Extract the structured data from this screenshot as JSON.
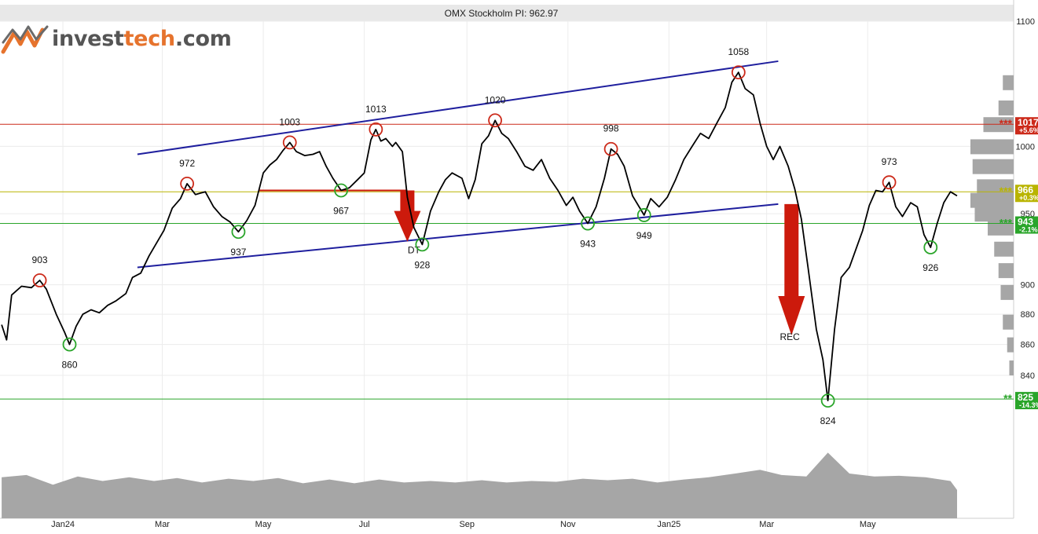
{
  "logo": {
    "part1": "invest",
    "part2": "tech",
    "part3": ".com",
    "icon": "investtech-logo-icon"
  },
  "colors": {
    "price": "#000000",
    "channel": "#1f1f9e",
    "resistance": "#cc2a1a",
    "support": "#2aa52a",
    "current": "#b9b400",
    "arrow": "#cc1a0c",
    "volume": "#a6a6a6",
    "profile": "#a6a6a6",
    "top_marker": "#cc2a1a",
    "bottom_marker": "#2aa52a"
  },
  "chart_data": {
    "type": "line",
    "title": "OMX Stockholm PI: 962.97",
    "ylim": [
      807,
      1100
    ],
    "y_scale": "log",
    "y_ticks": [
      1100,
      1000,
      950,
      900,
      880,
      860,
      840
    ],
    "y_tick_labels": [
      "1100",
      "1000",
      "950",
      "900",
      "880",
      "860",
      "840"
    ],
    "x_range": [
      "2023-11-24",
      "2025-06-24"
    ],
    "x_ticks": [
      {
        "date": "2024-01-01",
        "label": "Jan24"
      },
      {
        "date": "2024-03-01",
        "label": "Mar"
      },
      {
        "date": "2024-05-01",
        "label": "May"
      },
      {
        "date": "2024-07-01",
        "label": "Jul"
      },
      {
        "date": "2024-09-01",
        "label": "Sep"
      },
      {
        "date": "2024-11-01",
        "label": "Nov"
      },
      {
        "date": "2025-01-01",
        "label": "Jan25"
      },
      {
        "date": "2025-03-01",
        "label": "Mar"
      },
      {
        "date": "2025-05-01",
        "label": "May"
      }
    ],
    "series": [
      {
        "values": [
          [
            "2023-11-25",
            873
          ],
          [
            "2023-11-28",
            863
          ],
          [
            "2023-12-01",
            893
          ],
          [
            "2023-12-07",
            899
          ],
          [
            "2023-12-13",
            898
          ],
          [
            "2023-12-18",
            903
          ],
          [
            "2023-12-22",
            897
          ],
          [
            "2023-12-28",
            880
          ],
          [
            "2024-01-02",
            868
          ],
          [
            "2024-01-05",
            860
          ],
          [
            "2024-01-09",
            872
          ],
          [
            "2024-01-13",
            880
          ],
          [
            "2024-01-18",
            883
          ],
          [
            "2024-01-23",
            881
          ],
          [
            "2024-01-28",
            886
          ],
          [
            "2024-02-02",
            889
          ],
          [
            "2024-02-08",
            894
          ],
          [
            "2024-02-12",
            905
          ],
          [
            "2024-02-17",
            908
          ],
          [
            "2024-02-22",
            920
          ],
          [
            "2024-02-27",
            930
          ],
          [
            "2024-03-02",
            938
          ],
          [
            "2024-03-07",
            954
          ],
          [
            "2024-03-12",
            961
          ],
          [
            "2024-03-16",
            972
          ],
          [
            "2024-03-21",
            964
          ],
          [
            "2024-03-27",
            966
          ],
          [
            "2024-04-01",
            955
          ],
          [
            "2024-04-06",
            948
          ],
          [
            "2024-04-11",
            944
          ],
          [
            "2024-04-16",
            937
          ],
          [
            "2024-04-21",
            945
          ],
          [
            "2024-04-26",
            956
          ],
          [
            "2024-05-01",
            980
          ],
          [
            "2024-05-05",
            986
          ],
          [
            "2024-05-09",
            990
          ],
          [
            "2024-05-13",
            997
          ],
          [
            "2024-05-17",
            1003
          ],
          [
            "2024-05-21",
            996
          ],
          [
            "2024-05-26",
            993
          ],
          [
            "2024-05-31",
            994
          ],
          [
            "2024-06-04",
            996
          ],
          [
            "2024-06-08",
            985
          ],
          [
            "2024-06-12",
            976
          ],
          [
            "2024-06-17",
            967
          ],
          [
            "2024-06-22",
            969
          ],
          [
            "2024-06-27",
            975
          ],
          [
            "2024-07-01",
            980
          ],
          [
            "2024-07-05",
            1005
          ],
          [
            "2024-07-08",
            1013
          ],
          [
            "2024-07-11",
            1004
          ],
          [
            "2024-07-14",
            1006
          ],
          [
            "2024-07-18",
            1000
          ],
          [
            "2024-07-20",
            1003
          ],
          [
            "2024-07-24",
            996
          ],
          [
            "2024-07-27",
            962
          ],
          [
            "2024-07-31",
            940
          ],
          [
            "2024-08-05",
            928
          ],
          [
            "2024-08-10",
            952
          ],
          [
            "2024-08-15",
            966
          ],
          [
            "2024-08-19",
            975
          ],
          [
            "2024-08-23",
            980
          ],
          [
            "2024-08-29",
            976
          ],
          [
            "2024-09-02",
            961
          ],
          [
            "2024-09-06",
            975
          ],
          [
            "2024-09-10",
            1002
          ],
          [
            "2024-09-14",
            1008
          ],
          [
            "2024-09-18",
            1020
          ],
          [
            "2024-09-22",
            1010
          ],
          [
            "2024-09-26",
            1006
          ],
          [
            "2024-10-01",
            996
          ],
          [
            "2024-10-06",
            985
          ],
          [
            "2024-10-11",
            982
          ],
          [
            "2024-10-16",
            990
          ],
          [
            "2024-10-21",
            976
          ],
          [
            "2024-10-26",
            967
          ],
          [
            "2024-10-31",
            956
          ],
          [
            "2024-11-04",
            962
          ],
          [
            "2024-11-08",
            952
          ],
          [
            "2024-11-13",
            943
          ],
          [
            "2024-11-18",
            955
          ],
          [
            "2024-11-23",
            976
          ],
          [
            "2024-11-27",
            998
          ],
          [
            "2024-12-01",
            994
          ],
          [
            "2024-12-05",
            985
          ],
          [
            "2024-12-10",
            963
          ],
          [
            "2024-12-14",
            955
          ],
          [
            "2024-12-17",
            949
          ],
          [
            "2024-12-21",
            961
          ],
          [
            "2024-12-26",
            955
          ],
          [
            "2024-12-31",
            962
          ],
          [
            "2025-01-05",
            975
          ],
          [
            "2025-01-10",
            990
          ],
          [
            "2025-01-15",
            1000
          ],
          [
            "2025-01-20",
            1010
          ],
          [
            "2025-01-25",
            1006
          ],
          [
            "2025-01-30",
            1018
          ],
          [
            "2025-02-04",
            1030
          ],
          [
            "2025-02-08",
            1050
          ],
          [
            "2025-02-12",
            1058
          ],
          [
            "2025-02-16",
            1045
          ],
          [
            "2025-02-21",
            1040
          ],
          [
            "2025-02-25",
            1018
          ],
          [
            "2025-03-01",
            1000
          ],
          [
            "2025-03-05",
            990
          ],
          [
            "2025-03-09",
            1000
          ],
          [
            "2025-03-14",
            985
          ],
          [
            "2025-03-18",
            968
          ],
          [
            "2025-03-22",
            946
          ],
          [
            "2025-03-26",
            912
          ],
          [
            "2025-03-31",
            870
          ],
          [
            "2025-04-04",
            850
          ],
          [
            "2025-04-07",
            824
          ],
          [
            "2025-04-11",
            870
          ],
          [
            "2025-04-15",
            905
          ],
          [
            "2025-04-20",
            912
          ],
          [
            "2025-04-24",
            925
          ],
          [
            "2025-04-28",
            938
          ],
          [
            "2025-05-02",
            956
          ],
          [
            "2025-05-06",
            967
          ],
          [
            "2025-05-10",
            966
          ],
          [
            "2025-05-14",
            973
          ],
          [
            "2025-05-18",
            955
          ],
          [
            "2025-05-22",
            948
          ],
          [
            "2025-05-27",
            958
          ],
          [
            "2025-05-31",
            955
          ],
          [
            "2025-06-04",
            935
          ],
          [
            "2025-06-08",
            926
          ],
          [
            "2025-06-12",
            943
          ],
          [
            "2025-06-16",
            958
          ],
          [
            "2025-06-20",
            966
          ],
          [
            "2025-06-24",
            963
          ]
        ]
      }
    ],
    "channel_lines": [
      {
        "from": [
          "2024-02-15",
          994
        ],
        "to": [
          "2025-03-08",
          1067
        ]
      },
      {
        "from": [
          "2024-02-15",
          912
        ],
        "to": [
          "2025-03-08",
          957
        ]
      }
    ],
    "levels": [
      {
        "value": 1017,
        "star_label": "***",
        "label": "1017",
        "change": "+5.6%",
        "color": "#cc2a1a"
      },
      {
        "value": 966,
        "star_label": "***",
        "label": "966",
        "change": "+0.3%",
        "color": "#b9b400"
      },
      {
        "value": 943,
        "star_label": "***",
        "label": "943",
        "change": "-2.1%",
        "color": "#2aa52a"
      },
      {
        "value": 825,
        "star_label": "**",
        "label": "825",
        "change": "-14.3%",
        "color": "#2aa52a"
      }
    ],
    "double_top_base": {
      "from": [
        "2024-04-28",
        967
      ],
      "to": [
        "2024-07-27",
        967
      ]
    },
    "arrows": [
      {
        "date": "2024-07-27",
        "from": 967,
        "to": 930
      },
      {
        "date": "2025-03-16",
        "from": 957,
        "to": 866
      }
    ],
    "pattern_labels": [
      {
        "text": "DT",
        "date": "2024-07-31",
        "value": 924
      },
      {
        "text": "REC",
        "date": "2025-03-15",
        "value": 865
      }
    ],
    "tops": [
      {
        "date": "2023-12-18",
        "value": 903,
        "label": "903"
      },
      {
        "date": "2024-03-16",
        "value": 972,
        "label": "972"
      },
      {
        "date": "2024-05-17",
        "value": 1003,
        "label": "1003"
      },
      {
        "date": "2024-07-08",
        "value": 1013,
        "label": "1013"
      },
      {
        "date": "2024-09-18",
        "value": 1020,
        "label": "1020"
      },
      {
        "date": "2024-11-27",
        "value": 998,
        "label": "998"
      },
      {
        "date": "2025-02-12",
        "value": 1058,
        "label": "1058"
      },
      {
        "date": "2025-05-14",
        "value": 973,
        "label": "973"
      }
    ],
    "bottoms": [
      {
        "date": "2024-01-05",
        "value": 860,
        "label": "860"
      },
      {
        "date": "2024-04-16",
        "value": 937,
        "label": "937"
      },
      {
        "date": "2024-06-17",
        "value": 967,
        "label": "967"
      },
      {
        "date": "2024-08-05",
        "value": 928,
        "label": "928"
      },
      {
        "date": "2024-11-13",
        "value": 943,
        "label": "943"
      },
      {
        "date": "2024-12-17",
        "value": 949,
        "label": "949"
      },
      {
        "date": "2025-04-07",
        "value": 824,
        "label": "824"
      },
      {
        "date": "2025-06-08",
        "value": 926,
        "label": "926"
      }
    ],
    "volume_profile": [
      [
        1050,
        0.25
      ],
      [
        1030,
        0.35
      ],
      [
        1017,
        0.7
      ],
      [
        1000,
        1.0
      ],
      [
        985,
        0.95
      ],
      [
        970,
        0.85
      ],
      [
        960,
        1.0
      ],
      [
        950,
        0.9
      ],
      [
        940,
        0.6
      ],
      [
        925,
        0.45
      ],
      [
        910,
        0.35
      ],
      [
        895,
        0.3
      ],
      [
        875,
        0.25
      ],
      [
        860,
        0.15
      ],
      [
        845,
        0.1
      ]
    ],
    "volume": [
      [
        "2023-11-25",
        0.55
      ],
      [
        "2023-12-10",
        0.58
      ],
      [
        "2023-12-26",
        0.45
      ],
      [
        "2024-01-10",
        0.56
      ],
      [
        "2024-01-25",
        0.5
      ],
      [
        "2024-02-10",
        0.55
      ],
      [
        "2024-02-25",
        0.5
      ],
      [
        "2024-03-10",
        0.54
      ],
      [
        "2024-03-25",
        0.48
      ],
      [
        "2024-04-10",
        0.53
      ],
      [
        "2024-04-25",
        0.5
      ],
      [
        "2024-05-10",
        0.54
      ],
      [
        "2024-05-25",
        0.47
      ],
      [
        "2024-06-10",
        0.52
      ],
      [
        "2024-06-25",
        0.47
      ],
      [
        "2024-07-10",
        0.52
      ],
      [
        "2024-07-25",
        0.48
      ],
      [
        "2024-08-10",
        0.5
      ],
      [
        "2024-08-25",
        0.48
      ],
      [
        "2024-09-10",
        0.51
      ],
      [
        "2024-09-25",
        0.48
      ],
      [
        "2024-10-10",
        0.5
      ],
      [
        "2024-10-25",
        0.49
      ],
      [
        "2024-11-10",
        0.53
      ],
      [
        "2024-11-25",
        0.51
      ],
      [
        "2024-12-10",
        0.53
      ],
      [
        "2024-12-25",
        0.48
      ],
      [
        "2025-01-10",
        0.52
      ],
      [
        "2025-01-25",
        0.55
      ],
      [
        "2025-02-10",
        0.6
      ],
      [
        "2025-02-25",
        0.65
      ],
      [
        "2025-03-10",
        0.58
      ],
      [
        "2025-03-25",
        0.56
      ],
      [
        "2025-04-07",
        0.88
      ],
      [
        "2025-04-20",
        0.6
      ],
      [
        "2025-05-05",
        0.56
      ],
      [
        "2025-05-20",
        0.57
      ],
      [
        "2025-06-05",
        0.55
      ],
      [
        "2025-06-20",
        0.5
      ],
      [
        "2025-06-24",
        0.38
      ]
    ]
  }
}
